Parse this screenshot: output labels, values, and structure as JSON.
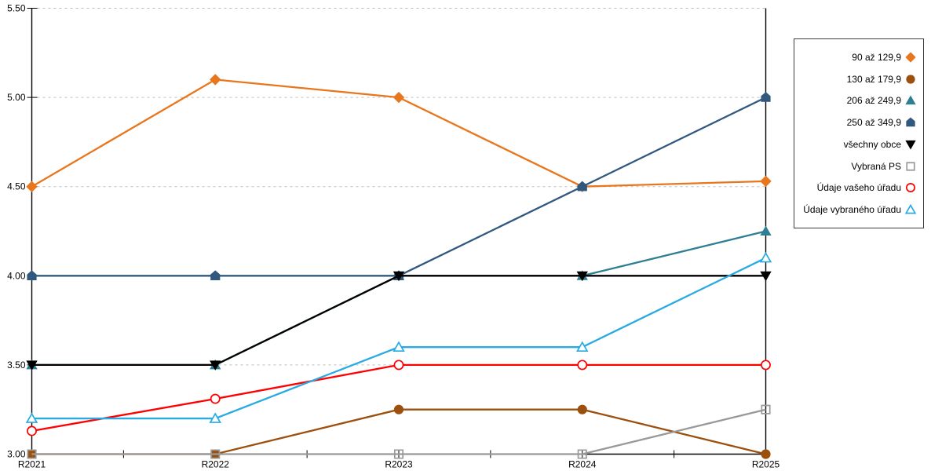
{
  "chart_data": {
    "type": "line",
    "title": "",
    "xlabel": "",
    "ylabel": "",
    "categories": [
      "R2021",
      "R2022",
      "R2023",
      "R2024",
      "R2025"
    ],
    "ylim": [
      3.0,
      5.5
    ],
    "ytick_step": 0.5,
    "ytick_labels": [
      "3.00",
      "3.50",
      "4.00",
      "4.50",
      "5.00",
      "5.50"
    ],
    "grid": "horizontal-dashed",
    "gridline_color": "#bdbdbd",
    "axis_color": "#000000",
    "legend_position": "right",
    "series": [
      {
        "name": "90 až 129,9",
        "marker": "diamond",
        "fill": "filled",
        "color": "#e8761d",
        "values": [
          4.5,
          5.1,
          5.0,
          4.5,
          4.53
        ]
      },
      {
        "name": "130 až 179,9",
        "marker": "circle",
        "fill": "filled",
        "color": "#9c500f",
        "values": [
          3.0,
          3.0,
          3.25,
          3.25,
          3.0
        ]
      },
      {
        "name": "206 až 249,9",
        "marker": "triangle-up",
        "fill": "filled",
        "color": "#2e7f93",
        "values": [
          3.5,
          3.5,
          4.0,
          4.0,
          4.25
        ]
      },
      {
        "name": "250 až 349,9",
        "marker": "pentagon",
        "fill": "filled",
        "color": "#31597f",
        "values": [
          4.0,
          4.0,
          4.0,
          4.5,
          5.0
        ]
      },
      {
        "name": "všechny obce",
        "marker": "triangle-down",
        "fill": "filled",
        "color": "#000000",
        "values": [
          3.5,
          3.5,
          4.0,
          4.0,
          4.0
        ]
      },
      {
        "name": "Vybraná PS",
        "marker": "square",
        "fill": "open",
        "color": "#999999",
        "values": [
          3.0,
          3.0,
          3.0,
          3.0,
          3.25
        ]
      },
      {
        "name": "Údaje vašeho úřadu",
        "marker": "circle",
        "fill": "open",
        "color": "#ff0000",
        "values": [
          3.13,
          3.31,
          3.5,
          3.5,
          3.5
        ]
      },
      {
        "name": "Údaje vybraného úřadu",
        "marker": "triangle-up",
        "fill": "open",
        "color": "#29abe2",
        "values": [
          3.2,
          3.2,
          3.6,
          3.6,
          4.1
        ]
      }
    ]
  }
}
